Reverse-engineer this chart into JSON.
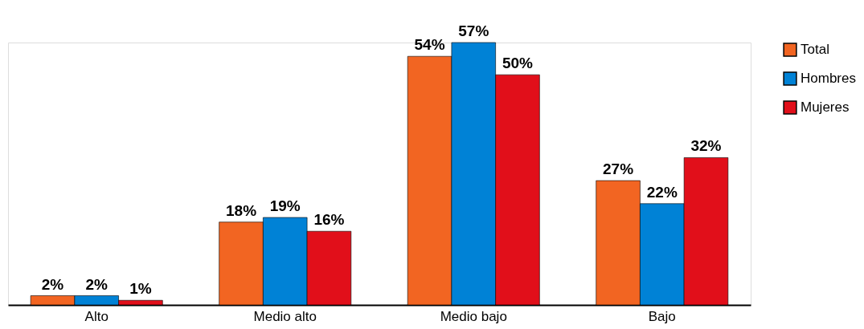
{
  "chart_data": {
    "type": "bar",
    "categories": [
      "Alto",
      "Medio alto",
      "Medio bajo",
      "Bajo"
    ],
    "series": [
      {
        "name": "Total",
        "color": "#f26522",
        "values": [
          2,
          18,
          54,
          27
        ],
        "value_labels": [
          "2%",
          "18%",
          "54%",
          "27%"
        ]
      },
      {
        "name": "Hombres",
        "color": "#0082d6",
        "values": [
          2,
          19,
          57,
          22
        ],
        "value_labels": [
          "2%",
          "19%",
          "57%",
          "22%"
        ]
      },
      {
        "name": "Mujeres",
        "color": "#e10f1a",
        "values": [
          1,
          16,
          50,
          32
        ],
        "value_labels": [
          "1%",
          "16%",
          "50%",
          "32%"
        ]
      }
    ],
    "legend": "right",
    "grid": false
  }
}
